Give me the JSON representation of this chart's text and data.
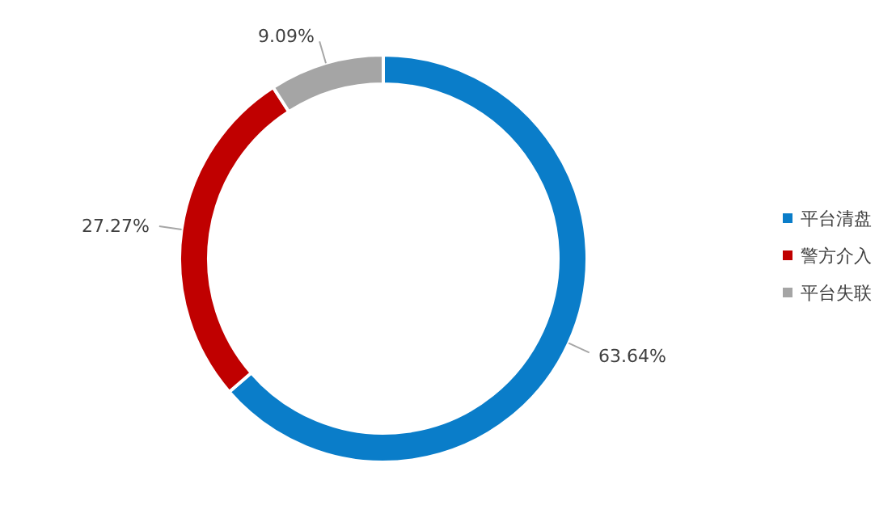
{
  "chart_data": {
    "type": "donut",
    "categories": [
      "平台清盘",
      "警方介入",
      "平台失联"
    ],
    "values": [
      63.64,
      27.27,
      9.09
    ],
    "colors": [
      "#0a7dc9",
      "#c00000",
      "#a5a5a5"
    ],
    "value_labels": [
      "63.64%",
      "27.27%",
      "9.09%"
    ],
    "legend": "right"
  }
}
